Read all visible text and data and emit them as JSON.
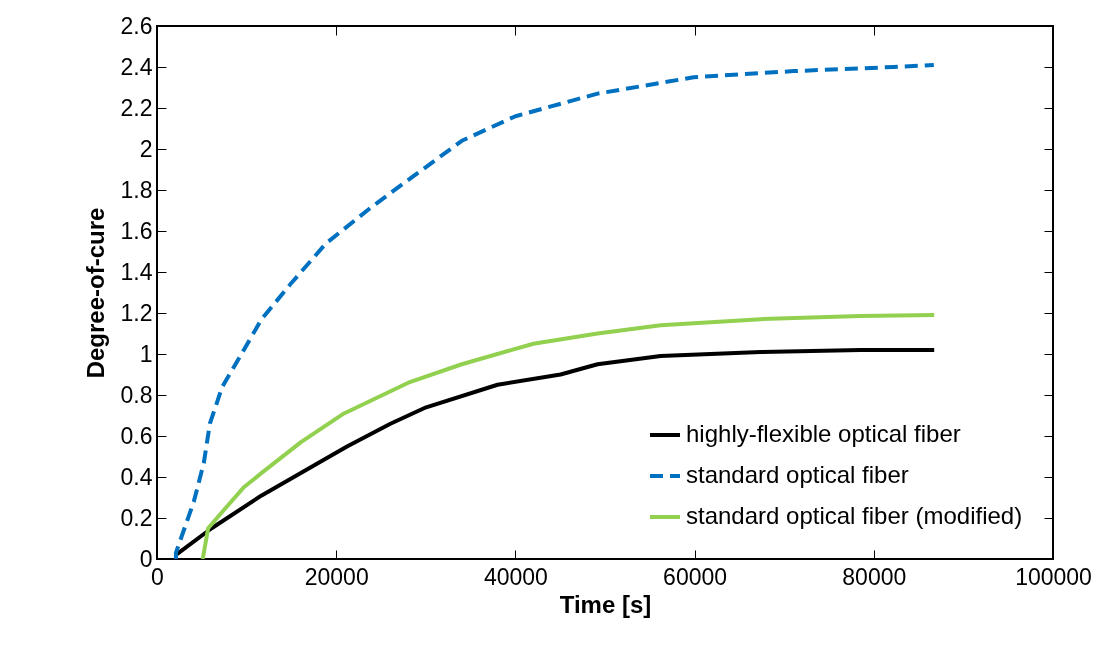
{
  "chart_data": {
    "type": "line",
    "xlabel": "Time [s]",
    "ylabel": "Degree-of-cure",
    "xlim": [
      0,
      100000
    ],
    "ylim": [
      0,
      2.6
    ],
    "xticks": [
      0,
      20000,
      40000,
      60000,
      80000,
      100000
    ],
    "yticks": [
      0,
      0.2,
      0.4,
      0.6,
      0.8,
      1,
      1.2,
      1.4,
      1.6,
      1.8,
      2,
      2.2,
      2.4,
      2.6
    ],
    "grid": false,
    "legend": "bottom right",
    "series": [
      {
        "name": "highly-flexible optical fiber",
        "color": "#000000",
        "line_style": "solid",
        "x": [
          2110,
          6100,
          11680,
          18870,
          21260,
          26050,
          30040,
          38010,
          45040,
          49170,
          56210,
          67370,
          78540,
          86740
        ],
        "values": [
          0.02,
          0.15,
          0.31,
          0.49,
          0.55,
          0.66,
          0.74,
          0.85,
          0.9,
          0.95,
          0.99,
          1.01,
          1.02,
          1.02
        ]
      },
      {
        "name": "standard optical fiber",
        "color": "#0070c0",
        "line_style": "dashed",
        "x": [
          2110,
          2110,
          4110,
          5230,
          5900,
          7280,
          8890,
          11680,
          14880,
          18870,
          24040,
          28390,
          34020,
          40010,
          49170,
          59890,
          71060,
          82230,
          86700
        ],
        "values": [
          0,
          0.03,
          0.28,
          0.47,
          0.66,
          0.84,
          0.96,
          1.17,
          1.34,
          1.54,
          1.72,
          1.86,
          2.04,
          2.16,
          2.27,
          2.35,
          2.38,
          2.4,
          2.41
        ]
      },
      {
        "name": "standard optical fiber (modified)",
        "color": "#92d050",
        "line_style": "solid",
        "x": [
          5100,
          5710,
          7490,
          9690,
          11680,
          16070,
          20870,
          28050,
          34020,
          42010,
          49170,
          56210,
          67370,
          78540,
          86740
        ],
        "values": [
          0,
          0.15,
          0.24,
          0.35,
          0.42,
          0.57,
          0.71,
          0.86,
          0.95,
          1.05,
          1.1,
          1.14,
          1.17,
          1.185,
          1.19
        ]
      }
    ]
  }
}
